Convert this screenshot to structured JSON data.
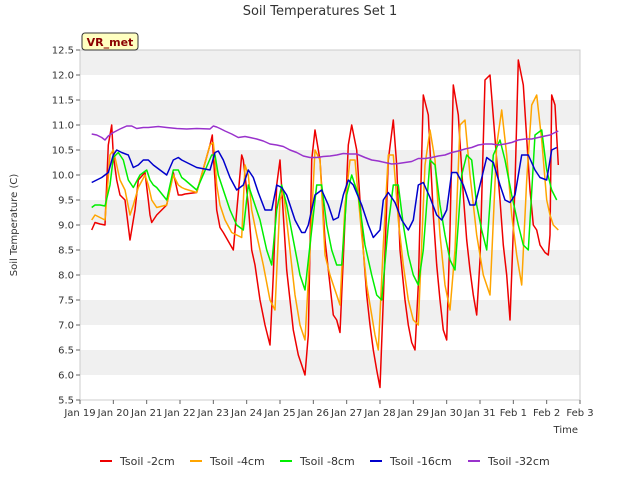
{
  "chart_data": {
    "type": "line",
    "title": "Soil Temperatures Set 1",
    "xlabel": "Time",
    "ylabel": "Soil Temperature (C)",
    "site_label": "VR_met",
    "xlim": [
      0,
      15
    ],
    "ylim": [
      5.5,
      12.5
    ],
    "x_ticks": [
      0,
      1,
      2,
      3,
      4,
      5,
      6,
      7,
      8,
      9,
      10,
      11,
      12,
      13,
      14,
      15
    ],
    "x_tick_labels": [
      "Jan 19",
      "Jan 20",
      "Jan 21",
      "Jan 22",
      "Jan 23",
      "Jan 24",
      "Jan 25",
      "Jan 26",
      "Jan 27",
      "Jan 28",
      "Jan 29",
      "Jan 30",
      "Jan 31",
      "Feb 1",
      "Feb 2",
      "Feb 3"
    ],
    "y_ticks": [
      5.5,
      6.0,
      6.5,
      7.0,
      7.5,
      8.0,
      8.5,
      9.0,
      9.5,
      10.0,
      10.5,
      11.0,
      11.5,
      12.0,
      12.5
    ],
    "y_tick_labels": [
      "5.5",
      "6.0",
      "6.5",
      "7.0",
      "7.5",
      "8.0",
      "8.5",
      "9.0",
      "9.5",
      "10.0",
      "10.5",
      "11.0",
      "11.5",
      "12.0",
      "12.5"
    ],
    "series": [
      {
        "name": "Tsoil -2cm",
        "color": "#ee0000",
        "x": [
          0.35,
          0.45,
          0.6,
          0.75,
          0.85,
          0.95,
          1.0,
          1.1,
          1.2,
          1.35,
          1.5,
          1.65,
          1.75,
          1.95,
          2.05,
          2.1,
          2.15,
          2.3,
          2.6,
          2.8,
          2.95,
          3.05,
          3.15,
          3.5,
          3.9,
          3.97,
          4.0,
          4.05,
          4.1,
          4.2,
          4.3,
          4.6,
          4.85,
          4.9,
          4.95,
          5.05,
          5.15,
          5.25,
          5.4,
          5.55,
          5.7,
          5.8,
          5.9,
          6.0,
          6.1,
          6.2,
          6.4,
          6.55,
          6.65,
          6.75,
          6.85,
          6.95,
          7.05,
          7.2,
          7.35,
          7.5,
          7.6,
          7.7,
          7.8,
          7.95,
          8.05,
          8.15,
          8.3,
          8.5,
          8.6,
          8.7,
          8.8,
          8.9,
          9.0,
          9.1,
          9.25,
          9.4,
          9.5,
          9.6,
          9.75,
          9.85,
          9.95,
          10.05,
          10.15,
          10.3,
          10.45,
          10.6,
          10.7,
          10.8,
          10.9,
          11.0,
          11.1,
          11.2,
          11.35,
          11.5,
          11.6,
          11.7,
          11.8,
          11.9,
          12.0,
          12.15,
          12.3,
          12.5,
          12.6,
          12.7,
          12.8,
          12.9,
          13.05,
          13.15,
          13.3,
          13.5,
          13.6,
          13.7,
          13.8,
          13.95,
          14.05,
          14.1,
          14.15,
          14.25,
          14.35
        ],
        "y": [
          8.9,
          9.05,
          9.02,
          9.0,
          10.6,
          11.0,
          10.4,
          9.9,
          9.6,
          9.5,
          8.7,
          9.3,
          9.9,
          10.05,
          9.5,
          9.2,
          9.05,
          9.2,
          9.4,
          10.05,
          9.6,
          9.6,
          9.62,
          9.65,
          10.6,
          10.8,
          10.4,
          9.9,
          9.3,
          8.95,
          8.85,
          8.5,
          10.4,
          10.3,
          10.0,
          9.4,
          8.5,
          8.2,
          7.5,
          7.0,
          6.6,
          8.0,
          9.8,
          10.3,
          9.2,
          8.1,
          6.9,
          6.4,
          6.2,
          6.0,
          6.8,
          10.3,
          10.9,
          10.3,
          8.7,
          7.8,
          7.2,
          7.1,
          6.85,
          9.1,
          10.6,
          11.0,
          10.5,
          8.5,
          7.6,
          7.0,
          6.5,
          6.1,
          5.75,
          7.5,
          10.3,
          11.1,
          10.2,
          8.5,
          7.5,
          7.0,
          6.65,
          6.5,
          7.8,
          11.6,
          11.2,
          9.2,
          8.2,
          7.5,
          6.9,
          6.7,
          8.9,
          11.8,
          11.2,
          9.6,
          8.7,
          8.1,
          7.6,
          7.2,
          8.3,
          11.9,
          12.0,
          10.3,
          9.5,
          8.6,
          8.0,
          7.1,
          9.8,
          12.3,
          11.8,
          9.7,
          9.0,
          8.9,
          8.6,
          8.45,
          8.4,
          8.8,
          11.6,
          11.4,
          10.2
        ]
      },
      {
        "name": "Tsoil -4cm",
        "color": "#ffa500",
        "x": [
          0.35,
          0.45,
          0.6,
          0.75,
          0.9,
          1.0,
          1.1,
          1.2,
          1.35,
          1.5,
          1.6,
          1.75,
          1.95,
          2.05,
          2.15,
          2.3,
          2.6,
          2.8,
          2.95,
          3.05,
          3.15,
          3.5,
          3.9,
          4.0,
          4.05,
          4.1,
          4.2,
          4.35,
          4.55,
          4.85,
          4.95,
          5.05,
          5.15,
          5.3,
          5.5,
          5.7,
          5.85,
          6.0,
          6.1,
          6.25,
          6.45,
          6.6,
          6.75,
          6.9,
          7.05,
          7.2,
          7.35,
          7.5,
          7.6,
          7.7,
          7.8,
          7.95,
          8.1,
          8.25,
          8.45,
          8.6,
          8.75,
          8.85,
          8.95,
          9.1,
          9.25,
          9.4,
          9.55,
          9.7,
          9.85,
          10.0,
          10.15,
          10.35,
          10.5,
          10.65,
          10.8,
          10.95,
          11.1,
          11.25,
          11.4,
          11.55,
          11.7,
          11.9,
          12.1,
          12.3,
          12.5,
          12.65,
          12.8,
          12.95,
          13.1,
          13.25,
          13.4,
          13.55,
          13.7,
          13.85,
          14.0,
          14.1,
          14.2,
          14.35
        ],
        "y": [
          9.1,
          9.2,
          9.15,
          9.1,
          10.4,
          10.5,
          10.2,
          9.9,
          9.7,
          9.2,
          9.4,
          9.75,
          10.0,
          9.8,
          9.5,
          9.35,
          9.4,
          10.0,
          9.8,
          9.75,
          9.72,
          9.65,
          10.6,
          10.65,
          10.3,
          9.8,
          9.4,
          9.1,
          8.85,
          8.75,
          10.2,
          10.0,
          9.3,
          8.8,
          8.2,
          7.5,
          7.3,
          9.5,
          9.7,
          8.8,
          7.6,
          7.0,
          6.7,
          8.5,
          10.5,
          10.3,
          8.4,
          8.0,
          7.8,
          7.6,
          7.4,
          9.4,
          10.3,
          10.3,
          8.8,
          7.8,
          7.2,
          6.8,
          6.5,
          8.6,
          10.4,
          10.4,
          9.1,
          8.2,
          7.5,
          7.1,
          7.0,
          10.2,
          10.9,
          10.3,
          8.8,
          7.8,
          7.3,
          8.5,
          11.0,
          11.1,
          10.0,
          8.8,
          8.0,
          7.6,
          10.6,
          11.3,
          10.4,
          9.2,
          8.4,
          7.8,
          9.9,
          11.4,
          11.6,
          10.7,
          9.5,
          9.2,
          9.0,
          8.9
        ]
      },
      {
        "name": "Tsoil -8cm",
        "color": "#00ee00",
        "x": [
          0.35,
          0.45,
          0.6,
          0.75,
          0.9,
          1.0,
          1.15,
          1.3,
          1.45,
          1.6,
          1.8,
          2.0,
          2.1,
          2.2,
          2.3,
          2.6,
          2.8,
          2.95,
          3.05,
          3.15,
          3.5,
          3.95,
          4.05,
          4.15,
          4.3,
          4.5,
          4.7,
          4.9,
          5.05,
          5.2,
          5.4,
          5.6,
          5.75,
          5.9,
          6.05,
          6.2,
          6.4,
          6.6,
          6.75,
          6.9,
          7.1,
          7.25,
          7.4,
          7.55,
          7.7,
          7.85,
          8.0,
          8.15,
          8.35,
          8.55,
          8.75,
          8.9,
          9.05,
          9.25,
          9.4,
          9.55,
          9.7,
          9.85,
          10.0,
          10.15,
          10.3,
          10.5,
          10.65,
          10.8,
          10.95,
          11.1,
          11.25,
          11.45,
          11.6,
          11.75,
          11.9,
          12.05,
          12.2,
          12.4,
          12.6,
          12.75,
          12.95,
          13.15,
          13.3,
          13.45,
          13.65,
          13.85,
          14.0,
          14.15,
          14.3
        ],
        "y": [
          9.35,
          9.4,
          9.4,
          9.38,
          9.8,
          10.35,
          10.45,
          10.3,
          9.9,
          9.75,
          10.0,
          10.1,
          9.9,
          9.8,
          9.75,
          9.5,
          10.1,
          10.1,
          9.95,
          9.9,
          9.7,
          10.4,
          10.4,
          10.0,
          9.7,
          9.3,
          9.0,
          8.9,
          9.8,
          9.5,
          9.1,
          8.5,
          8.2,
          9.3,
          9.8,
          9.4,
          8.7,
          8.0,
          7.7,
          8.6,
          9.8,
          9.8,
          9.0,
          8.5,
          8.2,
          8.2,
          9.6,
          10.0,
          9.6,
          8.6,
          8.0,
          7.6,
          7.5,
          9.0,
          9.8,
          9.8,
          9.0,
          8.4,
          8.0,
          7.8,
          8.5,
          10.3,
          10.2,
          9.4,
          8.8,
          8.3,
          8.1,
          10.0,
          10.4,
          10.3,
          9.4,
          8.9,
          8.5,
          10.4,
          10.7,
          10.3,
          9.6,
          9.0,
          8.6,
          8.5,
          10.8,
          10.9,
          10.1,
          9.7,
          9.5
        ]
      },
      {
        "name": "Tsoil -16cm",
        "color": "#0000cc",
        "x": [
          0.35,
          0.5,
          0.65,
          0.85,
          1.0,
          1.1,
          1.25,
          1.45,
          1.6,
          1.75,
          1.9,
          2.05,
          2.2,
          2.4,
          2.6,
          2.8,
          2.95,
          3.05,
          3.2,
          3.5,
          3.9,
          4.05,
          4.15,
          4.3,
          4.5,
          4.7,
          4.9,
          5.05,
          5.2,
          5.35,
          5.55,
          5.75,
          5.9,
          6.05,
          6.2,
          6.45,
          6.65,
          6.75,
          6.85,
          7.05,
          7.25,
          7.45,
          7.6,
          7.75,
          7.9,
          8.05,
          8.2,
          8.45,
          8.65,
          8.8,
          9.0,
          9.1,
          9.25,
          9.45,
          9.65,
          9.85,
          10.0,
          10.15,
          10.3,
          10.5,
          10.7,
          10.85,
          11.0,
          11.15,
          11.3,
          11.5,
          11.7,
          11.85,
          12.0,
          12.2,
          12.4,
          12.6,
          12.75,
          12.9,
          13.05,
          13.25,
          13.45,
          13.65,
          13.8,
          14.0,
          14.15,
          14.3
        ],
        "y": [
          9.85,
          9.9,
          9.95,
          10.05,
          10.4,
          10.5,
          10.45,
          10.4,
          10.15,
          10.2,
          10.3,
          10.3,
          10.2,
          10.1,
          10.0,
          10.3,
          10.35,
          10.3,
          10.25,
          10.15,
          10.1,
          10.45,
          10.48,
          10.3,
          9.95,
          9.7,
          9.8,
          10.1,
          9.95,
          9.65,
          9.3,
          9.3,
          9.8,
          9.75,
          9.6,
          9.1,
          8.85,
          8.85,
          9.0,
          9.6,
          9.7,
          9.4,
          9.1,
          9.15,
          9.6,
          9.9,
          9.8,
          9.4,
          9.0,
          8.75,
          8.9,
          9.5,
          9.65,
          9.45,
          9.1,
          8.9,
          9.1,
          9.8,
          9.85,
          9.55,
          9.2,
          9.1,
          9.3,
          10.05,
          10.05,
          9.8,
          9.4,
          9.4,
          9.8,
          10.35,
          10.25,
          9.8,
          9.5,
          9.45,
          9.6,
          10.4,
          10.4,
          10.1,
          9.95,
          9.9,
          10.5,
          10.55
        ]
      },
      {
        "name": "Tsoil -32cm",
        "color": "#9932cc",
        "x": [
          0.35,
          0.5,
          0.65,
          0.75,
          0.85,
          1.0,
          1.2,
          1.4,
          1.55,
          1.7,
          1.9,
          2.05,
          2.2,
          2.35,
          2.6,
          2.9,
          3.2,
          3.5,
          3.9,
          4.0,
          4.1,
          4.2,
          4.35,
          4.55,
          4.75,
          4.95,
          5.1,
          5.3,
          5.5,
          5.7,
          5.9,
          6.1,
          6.3,
          6.5,
          6.7,
          6.9,
          7.1,
          7.3,
          7.5,
          7.7,
          7.9,
          8.1,
          8.3,
          8.55,
          8.75,
          8.95,
          9.15,
          9.35,
          9.55,
          9.75,
          9.95,
          10.15,
          10.35,
          10.55,
          10.75,
          10.95,
          11.15,
          11.35,
          11.55,
          11.75,
          11.95,
          12.15,
          12.35,
          12.55,
          12.75,
          12.95,
          13.15,
          13.35,
          13.55,
          13.75,
          13.95,
          14.1,
          14.25,
          14.35
        ],
        "y": [
          10.82,
          10.8,
          10.75,
          10.7,
          10.78,
          10.85,
          10.92,
          10.98,
          10.98,
          10.93,
          10.95,
          10.95,
          10.96,
          10.97,
          10.95,
          10.93,
          10.92,
          10.93,
          10.92,
          10.98,
          10.96,
          10.93,
          10.88,
          10.82,
          10.75,
          10.77,
          10.75,
          10.72,
          10.68,
          10.62,
          10.6,
          10.57,
          10.5,
          10.45,
          10.38,
          10.35,
          10.35,
          10.37,
          10.38,
          10.4,
          10.43,
          10.42,
          10.42,
          10.35,
          10.3,
          10.28,
          10.25,
          10.22,
          10.23,
          10.25,
          10.27,
          10.33,
          10.33,
          10.35,
          10.38,
          10.4,
          10.45,
          10.48,
          10.52,
          10.55,
          10.6,
          10.62,
          10.62,
          10.6,
          10.62,
          10.65,
          10.7,
          10.72,
          10.72,
          10.75,
          10.78,
          10.8,
          10.85,
          10.88
        ]
      }
    ]
  }
}
